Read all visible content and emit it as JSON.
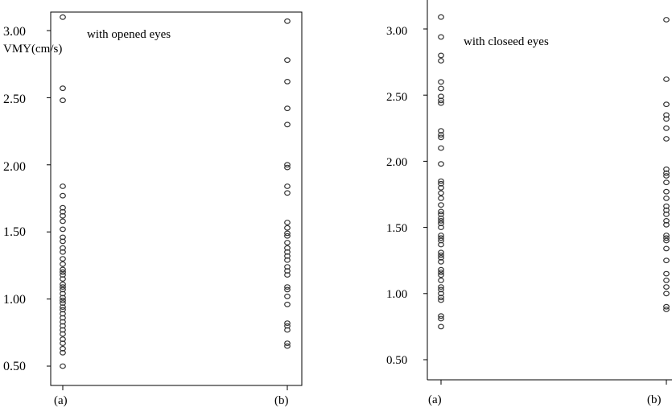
{
  "chart_data": [
    {
      "type": "scatter",
      "annotation": "with opened eyes",
      "ylabel": "VMY(cm/s)",
      "categories": [
        "(a)",
        "(b)"
      ],
      "y_ticks": [
        "3.00",
        "2.50",
        "2.00",
        "1.50",
        "1.00",
        "0.50"
      ],
      "ylim": [
        0.45,
        3.12
      ],
      "grid": false,
      "series": [
        {
          "category": "(a)",
          "values": [
            3.1,
            2.57,
            2.48,
            1.84,
            1.77,
            1.68,
            1.65,
            1.62,
            1.58,
            1.52,
            1.46,
            1.43,
            1.38,
            1.35,
            1.3,
            1.26,
            1.22,
            1.2,
            1.18,
            1.15,
            1.11,
            1.09,
            1.07,
            1.04,
            1.01,
            0.99,
            0.97,
            0.94,
            0.92,
            0.89,
            0.86,
            0.83,
            0.8,
            0.77,
            0.74,
            0.7,
            0.67,
            0.63,
            0.6,
            0.5
          ]
        },
        {
          "category": "(b)",
          "values": [
            3.07,
            2.78,
            2.62,
            2.42,
            2.3,
            2.0,
            1.98,
            1.84,
            1.79,
            1.57,
            1.53,
            1.49,
            1.47,
            1.42,
            1.38,
            1.35,
            1.32,
            1.29,
            1.24,
            1.21,
            1.18,
            1.09,
            1.07,
            1.02,
            0.96,
            0.82,
            0.8,
            0.77,
            0.67,
            0.65
          ]
        }
      ]
    },
    {
      "type": "scatter",
      "annotation": "with closeed eyes",
      "ylabel": "",
      "categories": [
        "(a)",
        "(b)"
      ],
      "y_ticks": [
        "3.00",
        "2.50",
        "2.00",
        "1.50",
        "1.00",
        "0.50"
      ],
      "ylim": [
        0.43,
        3.1
      ],
      "grid": false,
      "series": [
        {
          "category": "(a)",
          "values": [
            3.09,
            2.94,
            2.8,
            2.76,
            2.6,
            2.55,
            2.49,
            2.46,
            2.44,
            2.23,
            2.2,
            2.18,
            2.1,
            1.98,
            1.85,
            1.83,
            1.8,
            1.76,
            1.72,
            1.67,
            1.62,
            1.6,
            1.57,
            1.55,
            1.53,
            1.5,
            1.44,
            1.42,
            1.4,
            1.37,
            1.31,
            1.29,
            1.27,
            1.24,
            1.18,
            1.16,
            1.14,
            1.1,
            1.05,
            1.03,
            1.0,
            0.97,
            0.95,
            0.83,
            0.81,
            0.75
          ]
        },
        {
          "category": "(b)",
          "values": [
            3.07,
            2.62,
            2.43,
            2.35,
            2.32,
            2.25,
            2.17,
            1.94,
            1.91,
            1.89,
            1.84,
            1.77,
            1.72,
            1.66,
            1.63,
            1.6,
            1.55,
            1.52,
            1.44,
            1.42,
            1.4,
            1.34,
            1.25,
            1.15,
            1.1,
            1.05,
            1.0,
            0.9,
            0.88
          ]
        }
      ]
    }
  ]
}
